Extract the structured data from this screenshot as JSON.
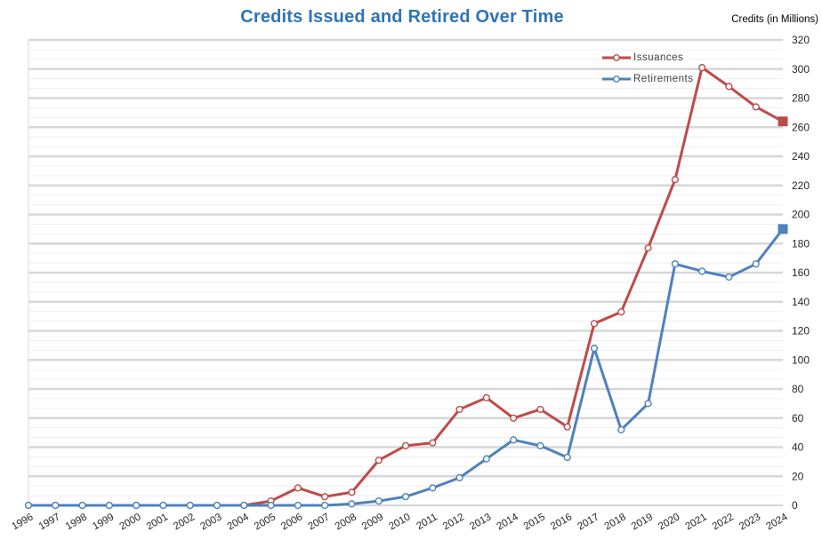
{
  "header": {
    "title": "Credits Issued and Retired Over Time"
  },
  "chart_data": {
    "type": "line",
    "title": "Credits Issued and Retired Over Time",
    "y_axis_title": "Credits (in Millions)",
    "xlabel": "",
    "ylabel": "Credits (in Millions)",
    "ylim": [
      0,
      320
    ],
    "y_tick_step": 20,
    "minor_gridlines_per_major": 2,
    "grid": true,
    "legend_position": "top-right",
    "categories": [
      "1996",
      "1997",
      "1998",
      "1999",
      "2000",
      "2001",
      "2002",
      "2003",
      "2004",
      "2005",
      "2006",
      "2007",
      "2008",
      "2009",
      "2010",
      "2011",
      "2012",
      "2013",
      "2014",
      "2015",
      "2016",
      "2017",
      "2018",
      "2019",
      "2020",
      "2021",
      "2022",
      "2023",
      "2024"
    ],
    "series": [
      {
        "name": "Issuances",
        "color": "#BE4B48",
        "marker": "circle",
        "last_marker": "square",
        "values": [
          0,
          0,
          0,
          0,
          0,
          0,
          0,
          0,
          0,
          3,
          12,
          6,
          9,
          31,
          41,
          43,
          66,
          74,
          60,
          66,
          54,
          125,
          133,
          177,
          224,
          301,
          288,
          274,
          264
        ]
      },
      {
        "name": "Retirements",
        "color": "#4F81BD",
        "marker": "circle",
        "last_marker": "square",
        "values": [
          0,
          0,
          0,
          0,
          0,
          0,
          0,
          0,
          0,
          0,
          0,
          0,
          1,
          3,
          6,
          12,
          19,
          32,
          45,
          41,
          33,
          108,
          52,
          70,
          166,
          161,
          157,
          166,
          190
        ]
      }
    ]
  },
  "colors": {
    "title": "#2E74B5",
    "major_gridline": "#D7D7D7",
    "minor_gridline": "#EFEFEF",
    "axis_line": "#C9C9C9",
    "plot_border": "#D9D9D9",
    "tick_label": "#262626"
  }
}
